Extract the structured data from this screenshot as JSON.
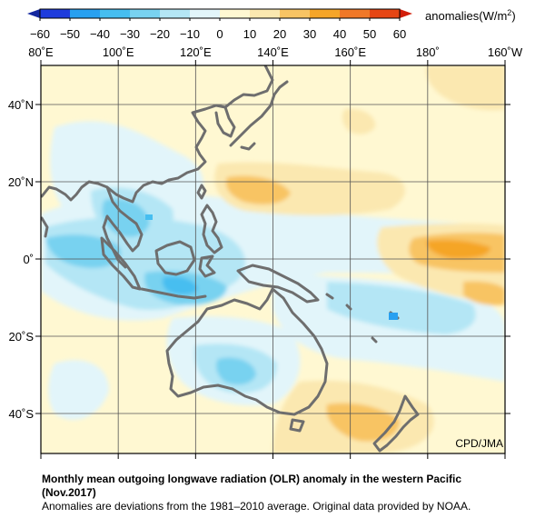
{
  "colorbar": {
    "ticks": [
      "−60",
      "−50",
      "−40",
      "−30",
      "−20",
      "−10",
      "0",
      "10",
      "20",
      "30",
      "40",
      "50",
      "60"
    ],
    "unit_label": "anomalies(W/m",
    "unit_sup": "2",
    "unit_close": ")",
    "bins": [
      {
        "from": -60,
        "to": -50,
        "color": "#1e3cdc"
      },
      {
        "from": -50,
        "to": -40,
        "color": "#28a0f0"
      },
      {
        "from": -40,
        "to": -30,
        "color": "#46bef0"
      },
      {
        "from": -30,
        "to": -20,
        "color": "#78d2f0"
      },
      {
        "from": -20,
        "to": -10,
        "color": "#b4e6f5"
      },
      {
        "from": -10,
        "to": 0,
        "color": "#e2f5fa"
      },
      {
        "from": 0,
        "to": 10,
        "color": "#fff8d2"
      },
      {
        "from": 10,
        "to": 20,
        "color": "#fbe8b0"
      },
      {
        "from": 20,
        "to": 30,
        "color": "#f8c464"
      },
      {
        "from": 30,
        "to": 40,
        "color": "#f5a528"
      },
      {
        "from": 40,
        "to": 50,
        "color": "#f07828"
      },
      {
        "from": 50,
        "to": 60,
        "color": "#e64614"
      }
    ],
    "extend_low_color": "#1428a0",
    "extend_high_color": "#d21e0a"
  },
  "map": {
    "lon_labels": [
      "80˚E",
      "100˚E",
      "120˚E",
      "140˚E",
      "160˚E",
      "180˚",
      "160˚W"
    ],
    "lat_labels": [
      "40˚N",
      "20˚N",
      "0˚",
      "20˚S",
      "40˚S"
    ],
    "credit": "CPD/JMA",
    "grid_color": "#555555",
    "coast_color": "#6e6e6e"
  },
  "caption": {
    "title_line1": "Monthly mean outgoing longwave radiation (OLR) anomaly in the western Pacific",
    "title_line2": "(Nov.2017)",
    "note": "Anomalies are deviations from the 1981–2010 average. Original data provided by NOAA."
  }
}
